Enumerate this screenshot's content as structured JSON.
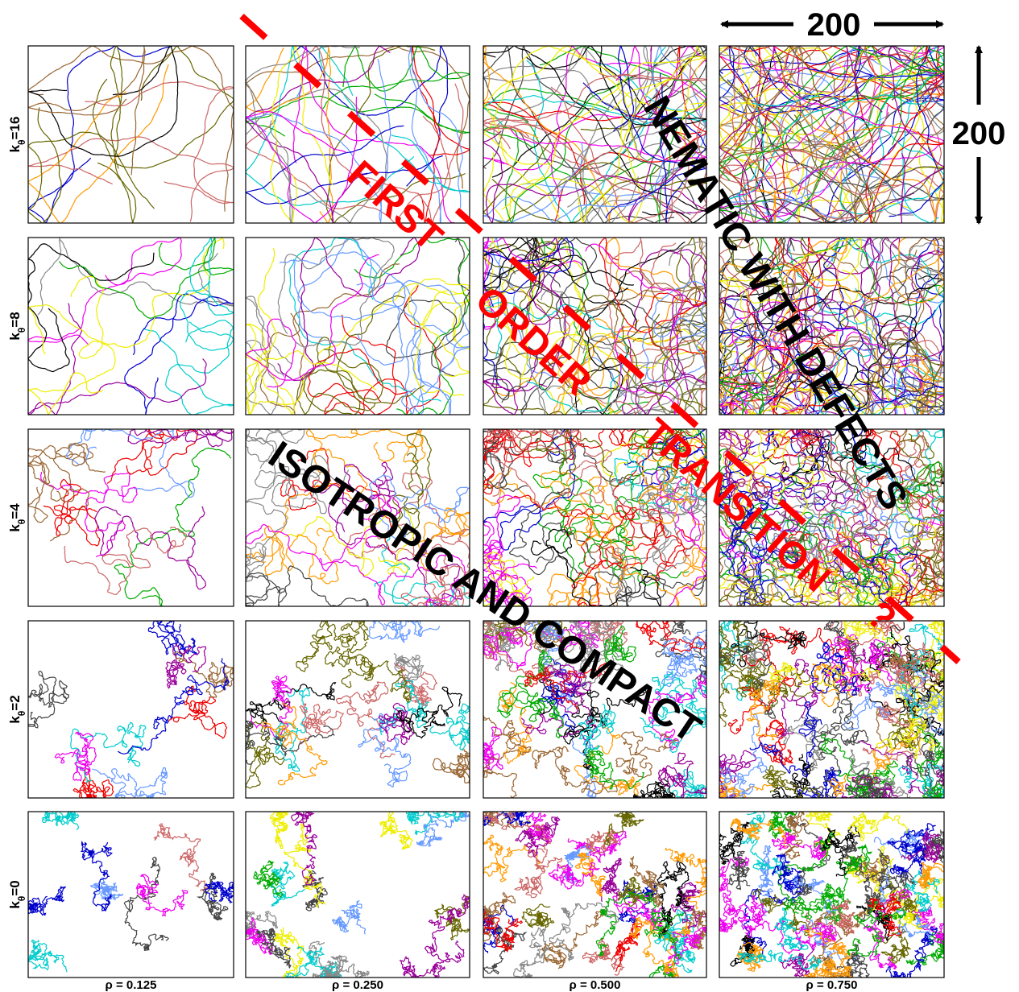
{
  "figure": {
    "row_labels": [
      {
        "main": "k",
        "sub": "θ",
        "tail": "=16"
      },
      {
        "main": "k",
        "sub": "θ",
        "tail": "=8"
      },
      {
        "main": "k",
        "sub": "θ",
        "tail": "=4"
      },
      {
        "main": "k",
        "sub": "θ",
        "tail": "=2"
      },
      {
        "main": "k",
        "sub": "θ",
        "tail": "=0"
      }
    ],
    "column_labels": [
      "ρ = 0.125",
      "ρ = 0.250",
      "ρ = 0.500",
      "ρ = 0.750"
    ],
    "scale_horizontal": "200",
    "scale_vertical": "200",
    "nematic": "NEMATIC WITH DEFECTS",
    "isotropic": "ISOTROPIC AND COMPACT",
    "transition": [
      "FIRST",
      "ORDER",
      "TRANSITION"
    ],
    "question": "?"
  }
}
